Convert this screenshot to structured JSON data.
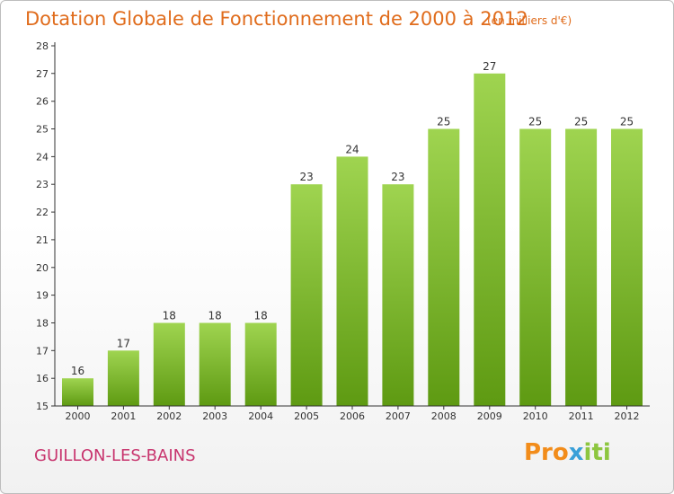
{
  "header": {
    "title": "Dotation Globale de Fonctionnement de 2000 à 2012",
    "unit_note": "(en milliers d'€)"
  },
  "footer": {
    "commune": "GUILLON-LES-BAINS",
    "logo_part1": "Pro",
    "logo_part2": "x",
    "logo_part3": "iti"
  },
  "colors": {
    "title": "#e06c1c",
    "commune": "#c8356e",
    "bar_top": "#9fd450",
    "bar_bottom": "#5e9a12",
    "axis": "#333333"
  },
  "chart_data": {
    "type": "bar",
    "categories": [
      "2000",
      "2001",
      "2002",
      "2003",
      "2004",
      "2005",
      "2006",
      "2007",
      "2008",
      "2009",
      "2010",
      "2011",
      "2012"
    ],
    "values": [
      16,
      17,
      18,
      18,
      18,
      23,
      24,
      23,
      25,
      27,
      25,
      25,
      25
    ],
    "ylim": [
      15,
      28
    ],
    "yticks": [
      15,
      16,
      17,
      18,
      19,
      20,
      21,
      22,
      23,
      24,
      25,
      26,
      27,
      28
    ],
    "grid": false,
    "data_labels": true
  }
}
